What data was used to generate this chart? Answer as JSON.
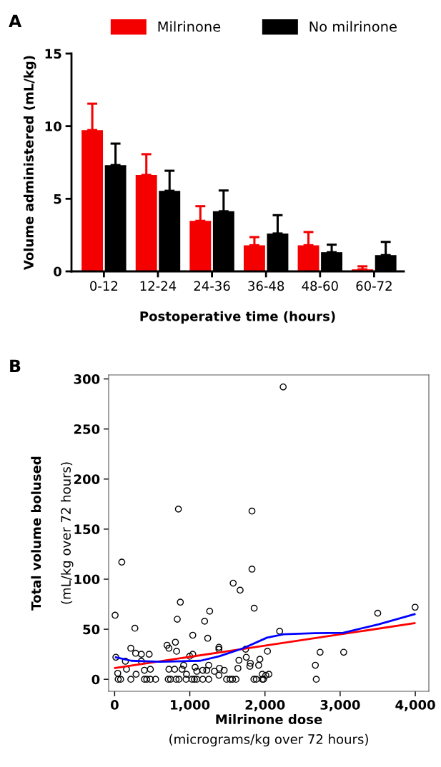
{
  "chart_data": [
    {
      "type": "bar",
      "title": "A",
      "xlabel": "Postoperative time (hours)",
      "ylabel": "Volume administered (mL/kg)",
      "categories": [
        "0-12",
        "12-24",
        "24-36",
        "36-48",
        "48-60",
        "60-72"
      ],
      "series": [
        {
          "name": "Milrinone",
          "color": "#f50000",
          "values": [
            9.73,
            6.64,
            3.48,
            1.8,
            1.8,
            0.14
          ],
          "errors": [
            [
              9.73,
              11.55
            ],
            [
              6.64,
              8.07
            ],
            [
              3.48,
              4.49
            ],
            [
              1.8,
              2.36
            ],
            [
              1.8,
              2.71
            ],
            [
              0.14,
              0.35
            ]
          ]
        },
        {
          "name": "No milrinone",
          "color": "#000000",
          "values": [
            7.32,
            5.55,
            4.14,
            2.61,
            1.32,
            1.12
          ],
          "errors": [
            [
              7.32,
              8.8
            ],
            [
              5.55,
              6.93
            ],
            [
              4.14,
              5.57
            ],
            [
              2.61,
              3.87
            ],
            [
              1.32,
              1.84
            ],
            [
              1.12,
              2.03
            ]
          ]
        }
      ],
      "ylim": [
        0,
        15
      ],
      "yticks": [
        0,
        5,
        10,
        15
      ],
      "grid": false,
      "legend": "top"
    },
    {
      "type": "scatter",
      "title": "B",
      "xlabel": "Milrinone dose\n(micrograms/kg over 72 hours)",
      "ylabel": "Total volume bolused\n(mL/kg over 72 hours)",
      "grid": false,
      "xlim": [
        -80,
        4180
      ],
      "xticks": [
        0,
        {
          "value": 1000,
          "label": "1,000"
        },
        {
          "value": 2000,
          "label": "2,000"
        },
        {
          "value": 3000,
          "label": "3,000"
        },
        {
          "value": 4000,
          "label": "4,000"
        }
      ],
      "ylim": [
        -12,
        304
      ],
      "yticks": [
        0,
        50,
        100,
        150,
        200,
        250,
        300
      ],
      "series": [
        {
          "type": "scatter",
          "marker": "circle",
          "color": "#000000",
          "x": [
            6,
            95,
            269,
            16,
            143,
            158,
            215,
            279,
            355,
            459,
            355,
            396,
            475,
            285,
            41,
            47,
            79,
            215,
            396,
            427,
            475,
            545,
            697,
            722,
            808,
            824,
            833,
            874,
            722,
            798,
            896,
            918,
            956,
            713,
            744,
            817,
            855,
            950,
            1029,
            1061,
            1093,
            1172,
            1251,
            1039,
            1039,
            998,
            1070,
            1093,
            1172,
            1197,
            1264,
            1238,
            1251,
            1226,
            1327,
            1387,
            1387,
            1394,
            1387,
            1457,
            1489,
            1536,
            1568,
            1615,
            1577,
            1669,
            1827,
            1856,
            1640,
            1653,
            1751,
            1742,
            1805,
            1799,
            1916,
            1932,
            2033,
            1964,
            2011,
            2052,
            1853,
            1884,
            1964,
            1980,
            2195,
            2670,
            2682,
            2733,
            3047,
            3500,
            3997,
            2242,
            848,
            1827
          ],
          "values": [
            64,
            117,
            51,
            22,
            18,
            10,
            31,
            26,
            25,
            25,
            18,
            9,
            10,
            5,
            6,
            0,
            0,
            0,
            0,
            0,
            0,
            0,
            34,
            31,
            37,
            28,
            60,
            77,
            10,
            10,
            10,
            14,
            5,
            0,
            0,
            0,
            0,
            0,
            0,
            0,
            0,
            0,
            0,
            44,
            25,
            23,
            12,
            8,
            9,
            58,
            68,
            41,
            14,
            9,
            8,
            32,
            30,
            11,
            4,
            9,
            0,
            0,
            0,
            0,
            96,
            89,
            110,
            71,
            11,
            19,
            22,
            30,
            16,
            13,
            14,
            20,
            28,
            5,
            4,
            5,
            0,
            0,
            0,
            0,
            48,
            14,
            0,
            27,
            27,
            66,
            72,
            292,
            170,
            168
          ]
        },
        {
          "type": "line",
          "marker": "none",
          "color": "#ff0000",
          "x": [
            6,
            1647,
            3990
          ],
          "values": [
            11.3,
            29.6,
            56
          ]
        },
        {
          "type": "line",
          "marker": "none",
          "color": "#0000ff",
          "x": [
            16,
            222,
            602,
            1140,
            1394,
            1710,
            2027,
            2249,
            2660,
            3040,
            3515,
            3990
          ],
          "values": [
            22,
            18.5,
            17.5,
            18.5,
            23,
            31,
            41.6,
            45,
            46,
            46.4,
            55,
            65
          ]
        }
      ]
    }
  ]
}
